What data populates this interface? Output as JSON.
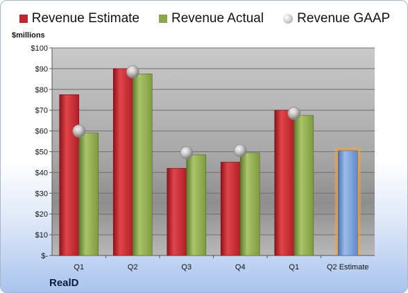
{
  "chart_data": {
    "type": "bar",
    "ylabel": "$millions",
    "ylim": [
      0,
      100
    ],
    "yticks": [
      0,
      10,
      20,
      30,
      40,
      50,
      60,
      70,
      80,
      90,
      100
    ],
    "ytick_labels": [
      "$-",
      "$10",
      "$20",
      "$30",
      "$40",
      "$50",
      "$60",
      "$70",
      "$80",
      "$90",
      "$100"
    ],
    "categories": [
      "Q1",
      "Q2",
      "Q3",
      "Q4",
      "Q1",
      "Q2 Estimate"
    ],
    "series": [
      {
        "name": "Revenue Estimate",
        "kind": "bar",
        "color": "#c0262c",
        "values": [
          77.5,
          90.0,
          42.0,
          45.0,
          70.0,
          null
        ]
      },
      {
        "name": "Revenue Actual",
        "kind": "bar",
        "color": "#8aa84b",
        "values": [
          59.0,
          87.5,
          48.5,
          49.5,
          67.5,
          null
        ]
      },
      {
        "name": "Revenue GAAP",
        "kind": "marker",
        "color": "#b8b8b8",
        "values": [
          60.0,
          88.5,
          49.5,
          50.5,
          68.5,
          null
        ]
      },
      {
        "name": "Q2 Estimate",
        "kind": "bar",
        "color": "#6f98d6",
        "highlight": "#f5a43a",
        "values": [
          null,
          null,
          null,
          null,
          null,
          50.5
        ]
      }
    ],
    "legend": "top",
    "grid": true,
    "company": "RealD"
  }
}
